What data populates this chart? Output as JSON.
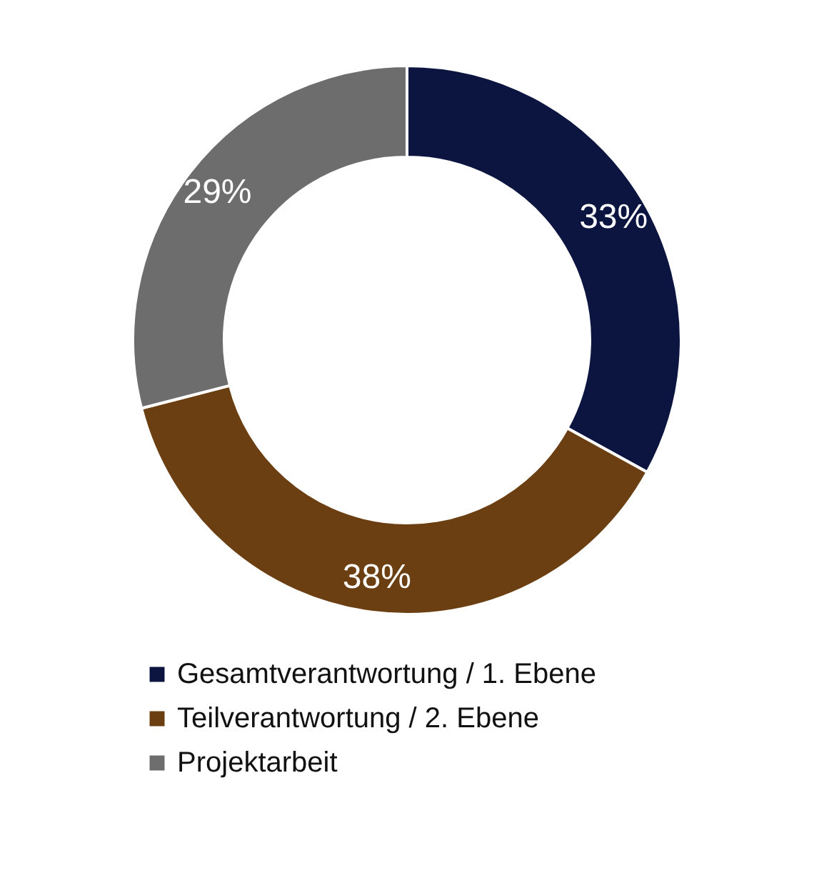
{
  "chart_data": {
    "type": "donut",
    "categories": [
      "Gesamtverantwortung / 1. Ebene",
      "Teilverantwortung / 2. Ebene",
      "Projektarbeit"
    ],
    "values": [
      33,
      38,
      29
    ],
    "colors": [
      "#0b1540",
      "#6b3f12",
      "#6d6d6d"
    ],
    "value_labels": [
      "33%",
      "38%",
      "29%"
    ],
    "legend": "bottom"
  }
}
